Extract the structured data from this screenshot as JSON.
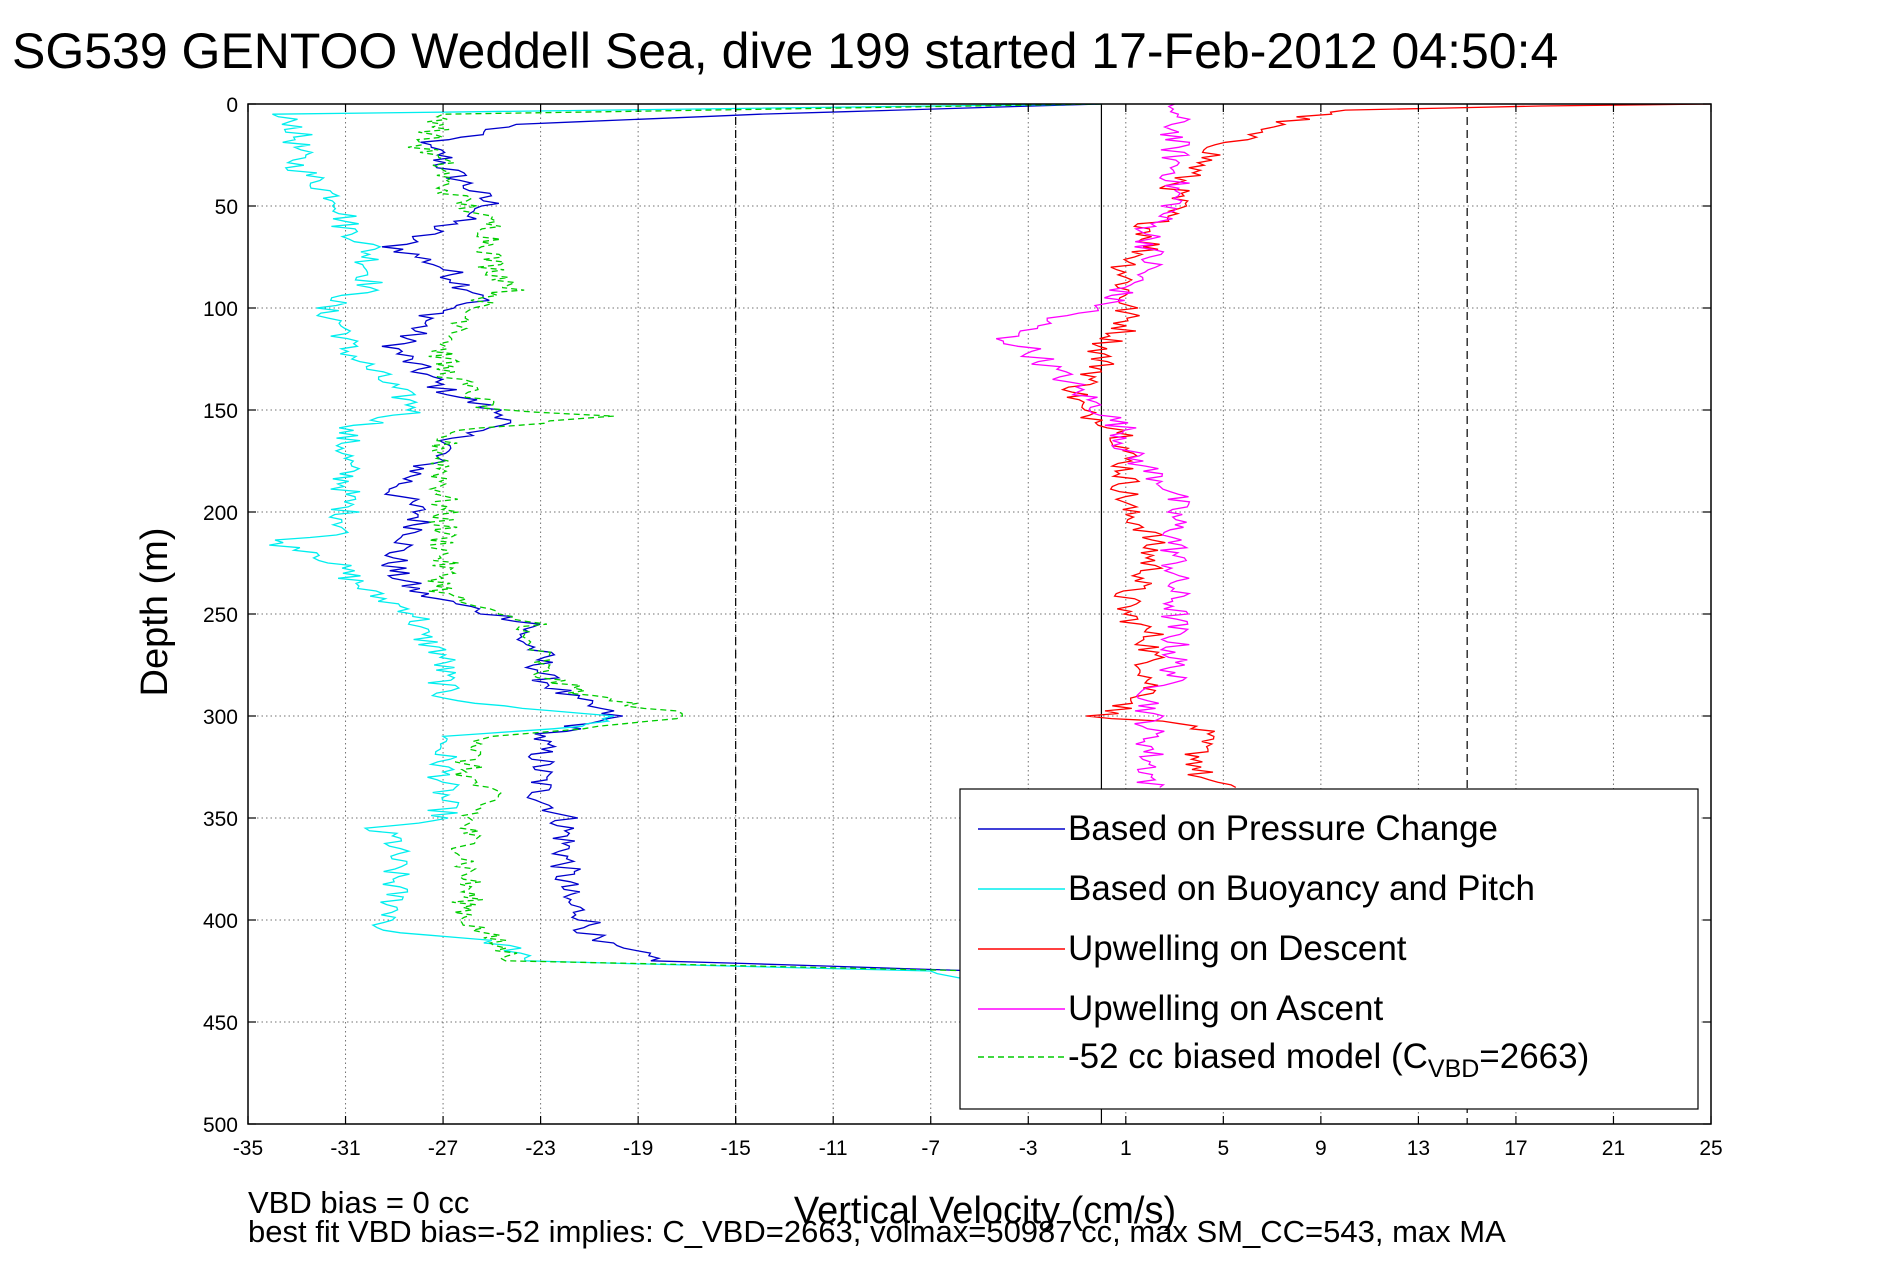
{
  "chart_data": {
    "type": "line",
    "title": "SG539 GENTOO Weddell Sea, dive 199 started 17-Feb-2012 04:50:4",
    "xlabel": "Vertical Velocity (cm/s)",
    "ylabel": "Depth (m)",
    "xlim": [
      -35,
      25
    ],
    "ylim": [
      0,
      500
    ],
    "y_reversed": true,
    "grid": true,
    "xticks": [
      -35,
      -31,
      -27,
      -23,
      -19,
      -15,
      -11,
      -7,
      -3,
      1,
      5,
      9,
      13,
      17,
      21,
      25
    ],
    "yticks": [
      0,
      50,
      100,
      150,
      200,
      250,
      300,
      350,
      400,
      450,
      500
    ],
    "reference_lines": [
      {
        "x": 0,
        "style": "solid"
      },
      {
        "x": -15,
        "style": "dashed"
      },
      {
        "x": 15,
        "style": "dashed"
      }
    ],
    "legend_position": "bottom-right",
    "series": [
      {
        "name": "Based on Pressure Change",
        "color": "#0000cc",
        "style": "solid",
        "depth": [
          0,
          5,
          10,
          15,
          20,
          25,
          30,
          40,
          50,
          60,
          70,
          75,
          80,
          90,
          95,
          100,
          110,
          120,
          130,
          140,
          150,
          155,
          160,
          170,
          180,
          190,
          200,
          210,
          220,
          230,
          240,
          250,
          255,
          260,
          270,
          280,
          290,
          300,
          310,
          320,
          330,
          340,
          350,
          360,
          370,
          380,
          390,
          400,
          410,
          420,
          425,
          428
        ],
        "velocity": [
          0,
          -14,
          -24,
          -26,
          -28,
          -27,
          -27,
          -26,
          -25,
          -27,
          -29,
          -28,
          -27,
          -26,
          -25,
          -27,
          -28,
          -29,
          -28,
          -27,
          -25,
          -24,
          -26,
          -27,
          -28,
          -29,
          -28,
          -28,
          -29,
          -29,
          -28,
          -25,
          -23,
          -24,
          -23,
          -23,
          -22,
          -20,
          -23,
          -23,
          -23,
          -23,
          -22,
          -22,
          -22,
          -22,
          -22,
          -21,
          -21,
          -18,
          -5,
          -4
        ]
      },
      {
        "name": "Based on Buoyancy and Pitch",
        "color": "#00eeee",
        "style": "solid",
        "depth": [
          0,
          5,
          10,
          20,
          30,
          40,
          50,
          60,
          70,
          80,
          90,
          100,
          110,
          120,
          130,
          140,
          150,
          160,
          170,
          180,
          190,
          200,
          210,
          215,
          220,
          230,
          240,
          250,
          260,
          270,
          280,
          290,
          295,
          300,
          305,
          310,
          320,
          330,
          340,
          350,
          355,
          360,
          370,
          380,
          390,
          400,
          405,
          410,
          415,
          420,
          425,
          430
        ],
        "velocity": [
          0,
          -34,
          -33,
          -33,
          -33,
          -32,
          -31,
          -31,
          -30,
          -30,
          -30,
          -32,
          -31,
          -31,
          -30,
          -29,
          -28,
          -31,
          -31,
          -31,
          -31,
          -31,
          -31,
          -34,
          -32,
          -31,
          -30,
          -28,
          -28,
          -27,
          -27,
          -27,
          -25,
          -20,
          -21,
          -27,
          -27,
          -27,
          -27,
          -27,
          -30,
          -29,
          -29,
          -29,
          -29,
          -29,
          -30,
          -25,
          -24,
          -24,
          -7,
          -5
        ]
      },
      {
        "name": "Upwelling on Descent",
        "color": "#ff0000",
        "style": "solid",
        "depth": [
          0,
          1,
          3,
          5,
          10,
          20,
          30,
          40,
          50,
          60,
          70,
          80,
          90,
          100,
          110,
          120,
          130,
          140,
          150,
          160,
          170,
          180,
          190,
          200,
          210,
          220,
          230,
          240,
          250,
          260,
          270,
          280,
          290,
          300,
          305,
          310,
          320,
          330,
          335
        ],
        "velocity": [
          25,
          18,
          10,
          9,
          7,
          5,
          4,
          3,
          3,
          2,
          2,
          1,
          1,
          1,
          1,
          0,
          0,
          -1,
          -1,
          1,
          1,
          1,
          1,
          1,
          2,
          2,
          2,
          1,
          1,
          2,
          2,
          2,
          2,
          0,
          4,
          4,
          4,
          4,
          5
        ]
      },
      {
        "name": "Upwelling on Ascent",
        "color": "#ff00ff",
        "style": "solid",
        "depth": [
          0,
          5,
          10,
          20,
          30,
          40,
          50,
          60,
          70,
          80,
          90,
          100,
          105,
          110,
          115,
          120,
          130,
          140,
          150,
          160,
          170,
          180,
          190,
          200,
          210,
          220,
          230,
          240,
          250,
          260,
          270,
          280,
          290,
          300,
          310,
          320,
          330,
          335
        ],
        "velocity": [
          3,
          3,
          3,
          3,
          3,
          3,
          3,
          2,
          2,
          2,
          1,
          0,
          -2,
          -3,
          -4,
          -3,
          -2,
          -1,
          0,
          1,
          1,
          2,
          3,
          3,
          3,
          3,
          3,
          3,
          3,
          3,
          3,
          3,
          2,
          2,
          2,
          2,
          2,
          2
        ]
      },
      {
        "name": "-52 cc biased model (C_VBD=2663)",
        "color": "#00cc00",
        "style": "dashed",
        "depth": [
          0,
          5,
          10,
          20,
          30,
          40,
          50,
          60,
          70,
          80,
          90,
          100,
          110,
          120,
          130,
          140,
          150,
          153,
          160,
          170,
          180,
          190,
          200,
          210,
          220,
          230,
          240,
          250,
          255,
          260,
          270,
          280,
          290,
          300,
          305,
          310,
          320,
          330,
          340,
          350,
          360,
          370,
          380,
          390,
          400,
          410,
          420,
          425
        ],
        "velocity": [
          0,
          -27,
          -27,
          -28,
          -27,
          -27,
          -26,
          -25,
          -25,
          -25,
          -24,
          -26,
          -26,
          -27,
          -27,
          -26,
          -25,
          -20,
          -27,
          -27,
          -27,
          -27,
          -27,
          -27,
          -27,
          -27,
          -27,
          -25,
          -23,
          -24,
          -23,
          -23,
          -21,
          -17,
          -20,
          -25,
          -26,
          -26,
          -25,
          -26,
          -26,
          -26,
          -26,
          -26,
          -26,
          -25,
          -24,
          -5
        ]
      }
    ],
    "legend": [
      {
        "label": "Based on Pressure Change",
        "color": "#0000cc",
        "style": "solid"
      },
      {
        "label": "Based on Buoyancy and Pitch",
        "color": "#00eeee",
        "style": "solid"
      },
      {
        "label": "Upwelling on Descent",
        "color": "#ff0000",
        "style": "solid"
      },
      {
        "label": "Upwelling on Ascent",
        "color": "#ff00ff",
        "style": "solid"
      },
      {
        "label": "-52 cc biased model (C",
        "sub": "VBD",
        "suffix": "=2663)",
        "color": "#00cc00",
        "style": "dashed"
      }
    ],
    "annotations": [
      "VBD bias = 0 cc",
      "best fit VBD bias=-52 implies: C_VBD=2663, volmax=50987 cc, max SM_CC=543, max MA"
    ]
  }
}
